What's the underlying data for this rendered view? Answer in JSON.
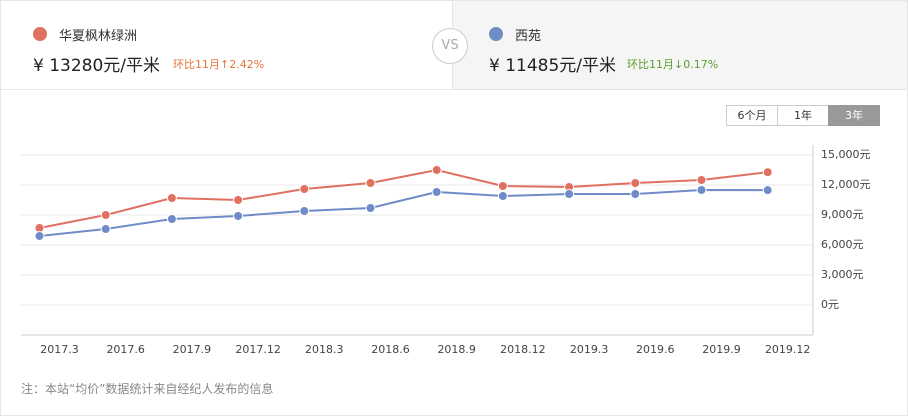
{
  "header": {
    "left": {
      "name": "华夏枫林绿洲",
      "price": "¥ 13280元/平米",
      "change": "环比11月↑2.42%"
    },
    "vs": "VS",
    "right": {
      "name": "西苑",
      "price": "¥ 11485元/平米",
      "change": "环比11月↓0.17%"
    }
  },
  "ranges": [
    "6个月",
    "1年",
    "3年"
  ],
  "chart_data": {
    "type": "line",
    "categories": [
      "2017.3",
      "2017.6",
      "2017.9",
      "2017.12",
      "2018.3",
      "2018.6",
      "2018.9",
      "2018.12",
      "2019.3",
      "2019.6",
      "2019.9",
      "2019.12"
    ],
    "series": [
      {
        "name": "华夏枫林绿洲",
        "color": "#e07060",
        "values": [
          7700,
          9000,
          10700,
          10500,
          11600,
          12200,
          13500,
          11900,
          11800,
          12200,
          12500,
          13280
        ]
      },
      {
        "name": "西苑",
        "color": "#6f8cc8",
        "values": [
          6900,
          7600,
          8600,
          8900,
          9400,
          9700,
          11300,
          10900,
          11100,
          11100,
          11500,
          11485
        ]
      }
    ],
    "ylim": [
      -3000,
      15000
    ],
    "yticks": [
      {
        "value": 0,
        "label": "0元"
      },
      {
        "value": 3000,
        "label": "3,000元"
      },
      {
        "value": 6000,
        "label": "6,000元"
      },
      {
        "value": 9000,
        "label": "9,000元"
      },
      {
        "value": 12000,
        "label": "12,000元"
      },
      {
        "value": 15000,
        "label": "15,000元"
      }
    ],
    "grid": true
  },
  "note": "注：本站“均价”数据统计来自经纪人发布的信息"
}
